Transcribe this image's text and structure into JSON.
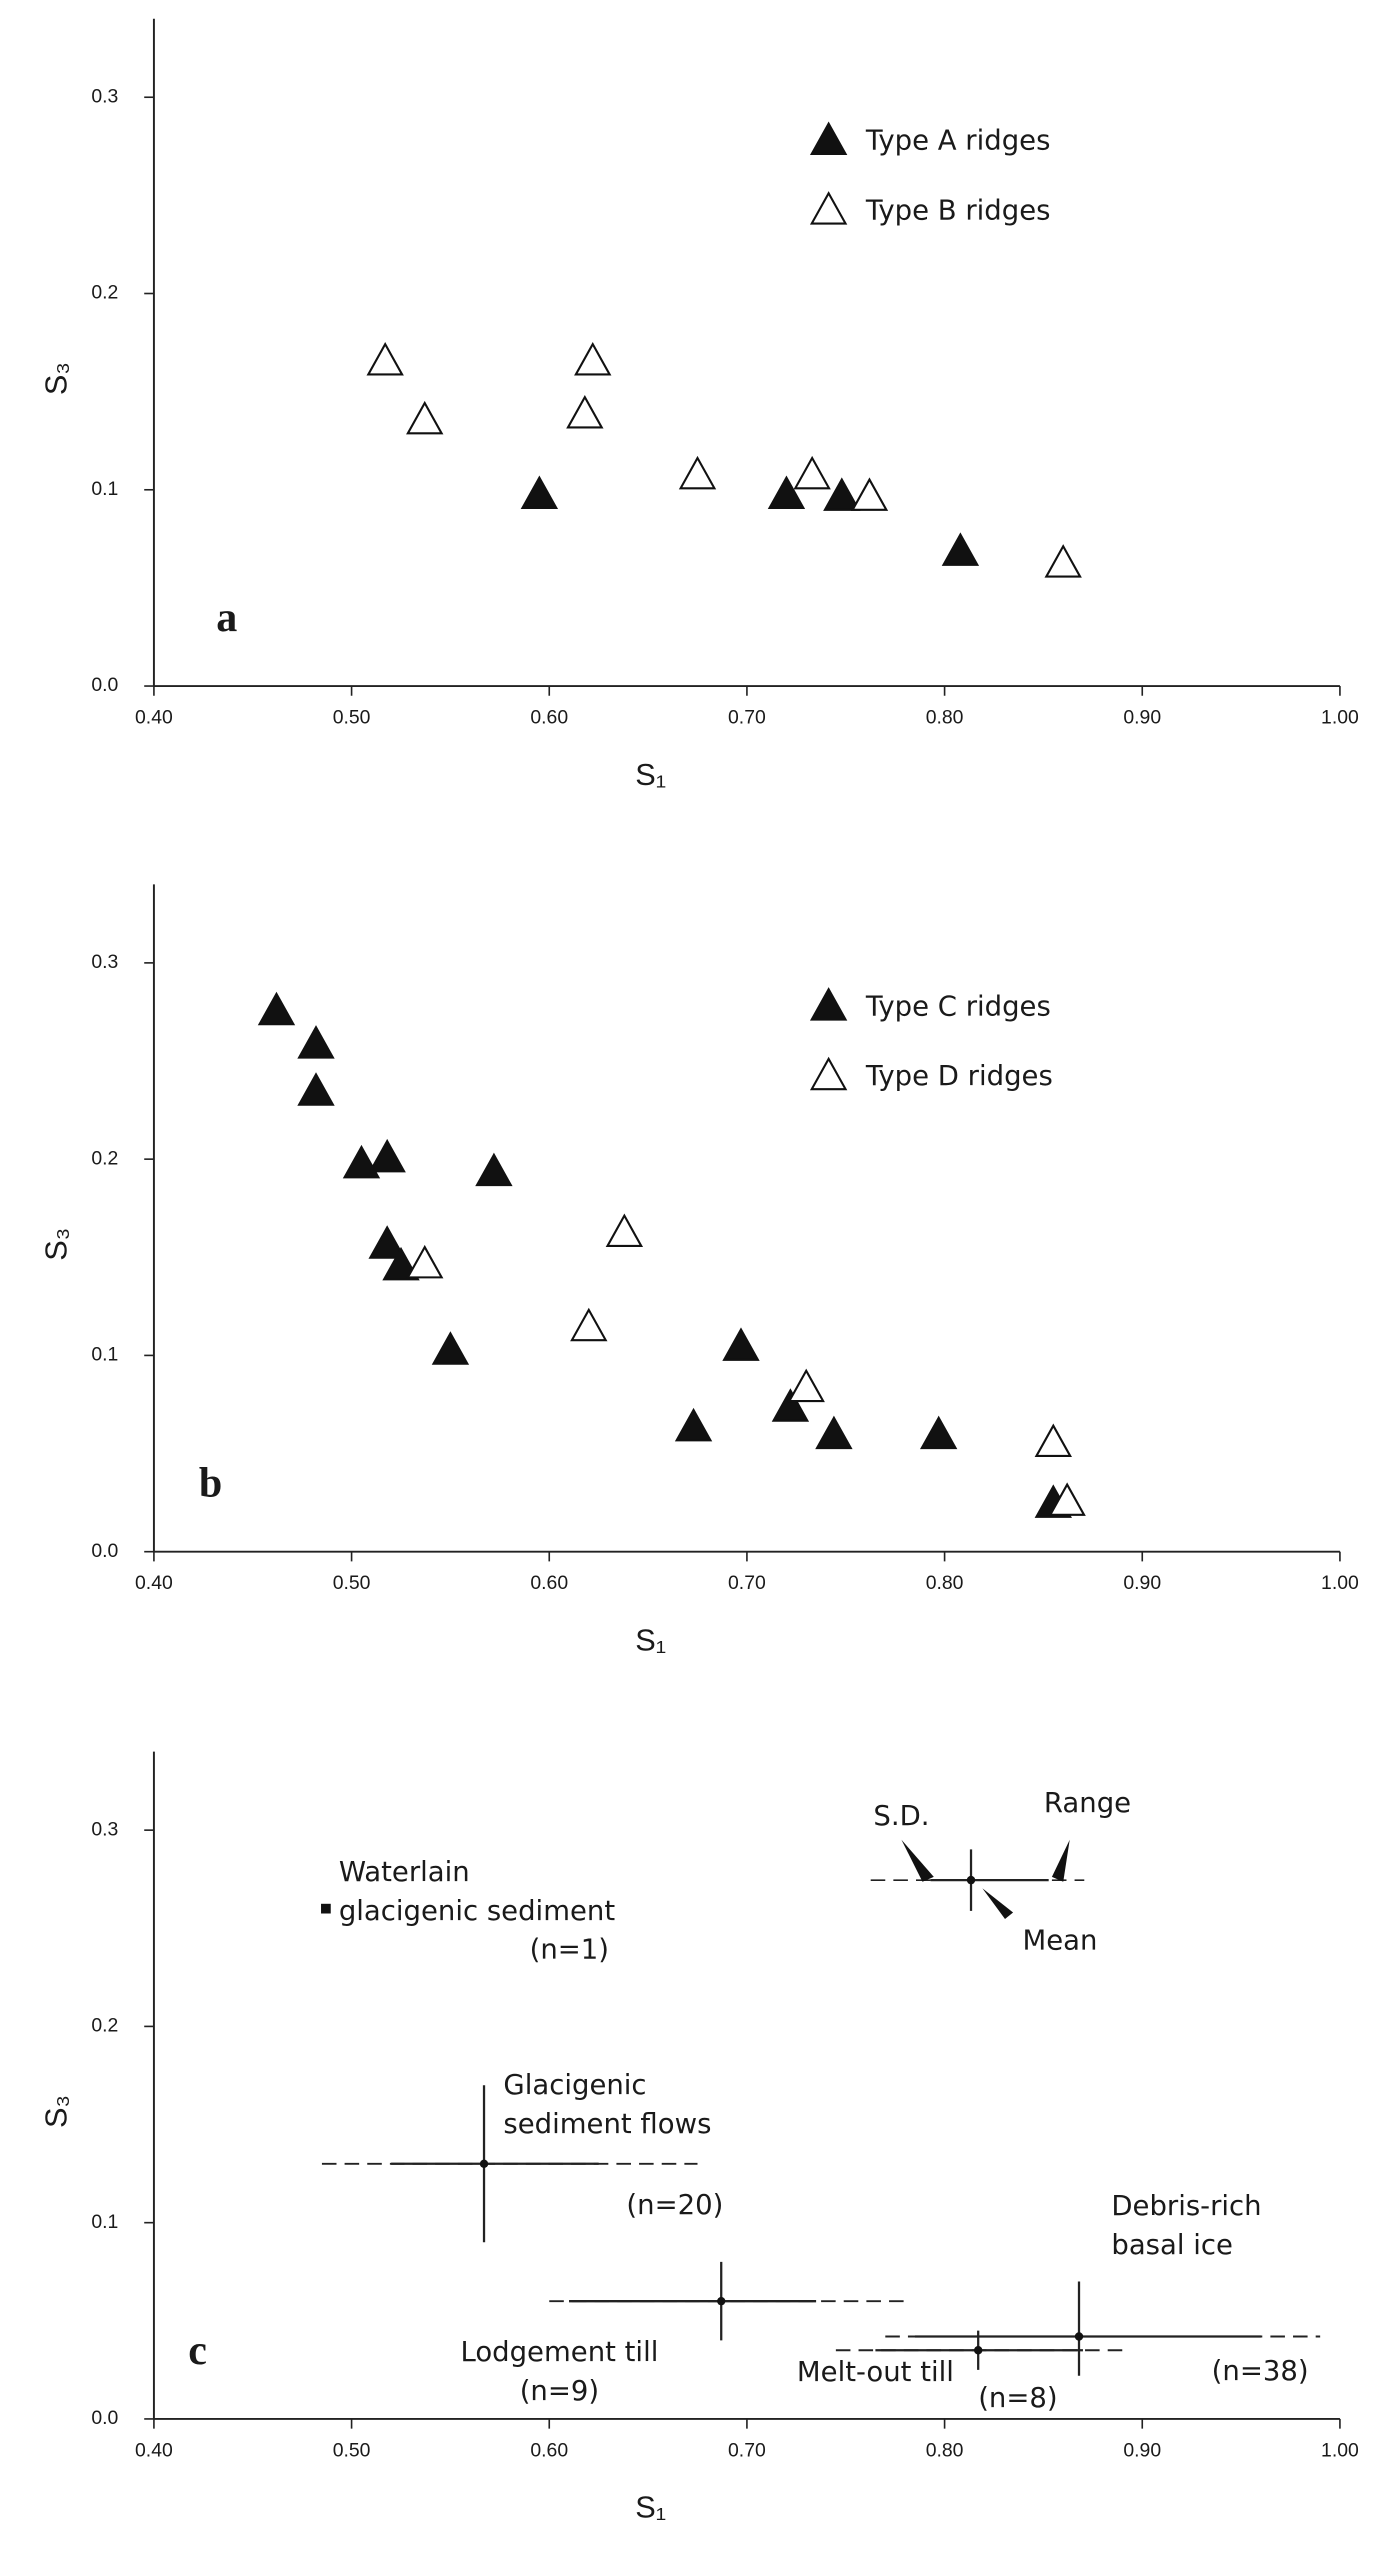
{
  "chart_data": [
    {
      "type": "scatter",
      "panel_label": "a",
      "xlabel": "S₁",
      "ylabel": "S₃",
      "xlim": [
        0.4,
        1.0
      ],
      "ylim": [
        0,
        0.34
      ],
      "xticks": [
        {
          "value": 0.4,
          "label": "0.40"
        },
        {
          "value": 0.5,
          "label": "0.50"
        },
        {
          "value": 0.6,
          "label": "0.60"
        },
        {
          "value": 0.7,
          "label": "0.70"
        },
        {
          "value": 0.8,
          "label": "0.80"
        },
        {
          "value": 0.9,
          "label": "0.90"
        },
        {
          "value": 1.0,
          "label": "1.00"
        }
      ],
      "yticks": [
        {
          "value": 0,
          "label": "0.0"
        },
        0.1,
        0.2,
        0.3
      ],
      "series": [
        {
          "name": "Type A ridges",
          "color": "#111111",
          "marker": "filled-triangle",
          "x": [
            0.595,
            0.72,
            0.748,
            0.808
          ],
          "values": [
            0.097,
            0.097,
            0.096,
            0.068
          ]
        },
        {
          "name": "Type B ridges",
          "color": "#111111",
          "marker": "open-triangle",
          "x": [
            0.517,
            0.537,
            0.622,
            0.618,
            0.675,
            0.733,
            0.762,
            0.86
          ],
          "values": [
            0.165,
            0.135,
            0.165,
            0.138,
            0.107,
            0.107,
            0.096,
            0.062
          ]
        }
      ]
    },
    {
      "type": "scatter",
      "panel_label": "b",
      "xlabel": "S₁",
      "ylabel": "S₃",
      "xlim": [
        0.4,
        1.0
      ],
      "ylim": [
        0,
        0.34
      ],
      "xticks": [
        {
          "value": 0.4,
          "label": "0.40"
        },
        {
          "value": 0.5,
          "label": "0.50"
        },
        {
          "value": 0.6,
          "label": "0.60"
        },
        {
          "value": 0.7,
          "label": "0.70"
        },
        {
          "value": 0.8,
          "label": "0.80"
        },
        {
          "value": 0.9,
          "label": "0.90"
        },
        {
          "value": 1.0,
          "label": "1.00"
        }
      ],
      "yticks": [
        {
          "value": 0,
          "label": "0.0"
        },
        0.1,
        0.2,
        0.3
      ],
      "series": [
        {
          "name": "Type C ridges",
          "color": "#111111",
          "marker": "filled-triangle",
          "x": [
            0.462,
            0.482,
            0.482,
            0.505,
            0.518,
            0.572,
            0.518,
            0.525,
            0.55,
            0.697,
            0.673,
            0.722,
            0.744,
            0.797,
            0.855
          ],
          "values": [
            0.275,
            0.258,
            0.234,
            0.197,
            0.2,
            0.193,
            0.156,
            0.145,
            0.102,
            0.104,
            0.063,
            0.073,
            0.059,
            0.059,
            0.024
          ]
        },
        {
          "name": "Type D ridges",
          "color": "#111111",
          "marker": "open-triangle",
          "x": [
            0.537,
            0.638,
            0.62,
            0.73,
            0.855,
            0.862
          ],
          "values": [
            0.146,
            0.162,
            0.114,
            0.083,
            0.055,
            0.025
          ]
        }
      ]
    },
    {
      "type": "errorbar",
      "panel_label": "c",
      "xlabel": "S₁",
      "ylabel": "S₃",
      "xlim": [
        0.4,
        1.0
      ],
      "ylim": [
        0,
        0.34
      ],
      "xticks": [
        {
          "value": 0.4,
          "label": "0.40"
        },
        {
          "value": 0.5,
          "label": "0.50"
        },
        {
          "value": 0.6,
          "label": "0.60"
        },
        {
          "value": 0.7,
          "label": "0.70"
        },
        {
          "value": 0.8,
          "label": "0.80"
        },
        {
          "value": 0.9,
          "label": "0.90"
        },
        {
          "value": 1.0,
          "label": "1.00"
        }
      ],
      "yticks": [
        {
          "value": 0,
          "label": "0.0"
        },
        0.1,
        0.2,
        0.3
      ],
      "key": {
        "sd": "S.D.",
        "range": "Range",
        "mean": "Mean"
      },
      "groups": [
        {
          "label": [
            "Waterlain",
            "glacigenic sediment"
          ],
          "n_label": "(n=1)",
          "x": 0.487,
          "y": 0.26
        },
        {
          "label": [
            "Glacigenic",
            "sediment flows"
          ],
          "n_label": "(n=20)",
          "x": 0.567,
          "y": 0.13,
          "sd_x": [
            0.52,
            0.625
          ],
          "range_x": [
            0.485,
            0.675
          ],
          "sd_y": [
            0.09,
            0.17
          ]
        },
        {
          "label": [
            "Lodgement till"
          ],
          "n_label": "(n=9)",
          "x": 0.687,
          "y": 0.06,
          "sd_x": [
            0.61,
            0.735
          ],
          "range_x": [
            0.6,
            0.78
          ],
          "sd_y": [
            0.04,
            0.08
          ]
        },
        {
          "label": [
            "Melt-out till"
          ],
          "n_label": "(n=8)",
          "x": 0.817,
          "y": 0.035,
          "sd_x": [
            0.765,
            0.87
          ],
          "range_x": [
            0.745,
            0.89
          ],
          "sd_y": [
            0.025,
            0.045
          ]
        },
        {
          "label": [
            "Debris-rich",
            "basal ice"
          ],
          "n_label": "(n=38)",
          "x": 0.868,
          "y": 0.042,
          "sd_x": [
            0.785,
            0.96
          ],
          "range_x": [
            0.77,
            0.99
          ],
          "sd_y": [
            0.022,
            0.07
          ]
        }
      ]
    }
  ]
}
